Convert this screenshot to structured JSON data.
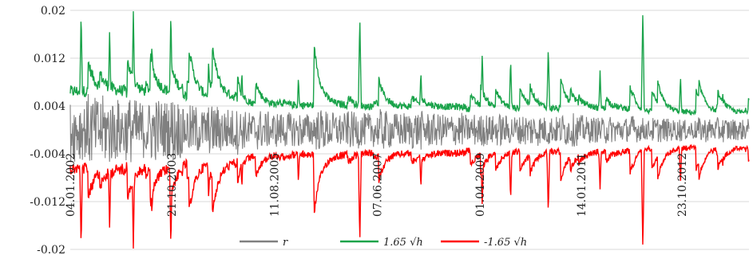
{
  "chart_data": {
    "type": "line",
    "title": "",
    "xlabel": "",
    "ylabel": "",
    "ylim": [
      -0.02,
      0.02
    ],
    "yticks": [
      "0.02",
      "0.012",
      "0.004",
      "-0.004",
      "-0.012",
      "-0.02"
    ],
    "ytick_values": [
      0.02,
      0.012,
      0.004,
      -0.004,
      -0.012,
      -0.02
    ],
    "xtick_labels": [
      "04.01.2002",
      "21.10.2003",
      "11.08.2005",
      "07.06.2007",
      "01.04.2009",
      "14.01.2011",
      "23.10.2012"
    ],
    "x_range": [
      "04.01.2002",
      "31.12.2013"
    ],
    "grid": "horizontal",
    "legend_position": "bottom",
    "colors": {
      "r": "#808080",
      "upper": "#1aa34a",
      "lower": "#ff0000"
    },
    "series": [
      {
        "name": "r",
        "note": "daily returns, high-frequency noise",
        "envelope_by_year": [
          {
            "year": 2002,
            "amplitude": 0.0045
          },
          {
            "year": 2003,
            "amplitude": 0.004
          },
          {
            "year": 2004,
            "amplitude": 0.003
          },
          {
            "year": 2005,
            "amplitude": 0.0025
          },
          {
            "year": 2006,
            "amplitude": 0.0025
          },
          {
            "year": 2007,
            "amplitude": 0.0025
          },
          {
            "year": 2008,
            "amplitude": 0.0025
          },
          {
            "year": 2009,
            "amplitude": 0.002
          },
          {
            "year": 2010,
            "amplitude": 0.002
          },
          {
            "year": 2011,
            "amplitude": 0.0018
          },
          {
            "year": 2012,
            "amplitude": 0.0015
          },
          {
            "year": 2013,
            "amplitude": 0.0015
          }
        ]
      },
      {
        "name": "1.65 √h",
        "baseline_by_year": [
          {
            "year": 2002,
            "value": 0.0055
          },
          {
            "year": 2003,
            "value": 0.0052
          },
          {
            "year": 2004,
            "value": 0.0045
          },
          {
            "year": 2005,
            "value": 0.0035
          },
          {
            "year": 2006,
            "value": 0.0035
          },
          {
            "year": 2007,
            "value": 0.0033
          },
          {
            "year": 2008,
            "value": 0.0033
          },
          {
            "year": 2009,
            "value": 0.003
          },
          {
            "year": 2010,
            "value": 0.003
          },
          {
            "year": 2011,
            "value": 0.003
          },
          {
            "year": 2012,
            "value": 0.0025
          },
          {
            "year": 2013,
            "value": 0.0024
          }
        ],
        "spikes": [
          {
            "date": "2002-03",
            "value": 0.02
          },
          {
            "date": "2002-09",
            "value": 0.017
          },
          {
            "date": "2003-02",
            "value": 0.02
          },
          {
            "date": "2003-06",
            "value": 0.015
          },
          {
            "date": "2003-10",
            "value": 0.02
          },
          {
            "date": "2004-06",
            "value": 0.012
          },
          {
            "date": "2005-01",
            "value": 0.01
          },
          {
            "date": "2006-01",
            "value": 0.009
          },
          {
            "date": "2007-02",
            "value": 0.019
          },
          {
            "date": "2008-03",
            "value": 0.01
          },
          {
            "date": "2009-04",
            "value": 0.013
          },
          {
            "date": "2009-10",
            "value": 0.012
          },
          {
            "date": "2010-06",
            "value": 0.014
          },
          {
            "date": "2011-05",
            "value": 0.01
          },
          {
            "date": "2012-02",
            "value": 0.02
          },
          {
            "date": "2012-10",
            "value": 0.009
          },
          {
            "date": "2013-07",
            "value": 0.006
          }
        ]
      },
      {
        "name": "-1.65 √h",
        "baseline_by_year": [
          {
            "year": 2002,
            "value": -0.0055
          },
          {
            "year": 2003,
            "value": -0.0052
          },
          {
            "year": 2004,
            "value": -0.0045
          },
          {
            "year": 2005,
            "value": -0.0035
          },
          {
            "year": 2006,
            "value": -0.0035
          },
          {
            "year": 2007,
            "value": -0.0033
          },
          {
            "year": 2008,
            "value": -0.0033
          },
          {
            "year": 2009,
            "value": -0.003
          },
          {
            "year": 2010,
            "value": -0.003
          },
          {
            "year": 2011,
            "value": -0.003
          },
          {
            "year": 2012,
            "value": -0.0025
          },
          {
            "year": 2013,
            "value": -0.0024
          }
        ],
        "spikes": [
          {
            "date": "2002-03",
            "value": -0.02
          },
          {
            "date": "2002-09",
            "value": -0.017
          },
          {
            "date": "2003-02",
            "value": -0.02
          },
          {
            "date": "2003-06",
            "value": -0.015
          },
          {
            "date": "2003-10",
            "value": -0.02
          },
          {
            "date": "2004-06",
            "value": -0.012
          },
          {
            "date": "2005-01",
            "value": -0.01
          },
          {
            "date": "2006-01",
            "value": -0.009
          },
          {
            "date": "2007-02",
            "value": -0.019
          },
          {
            "date": "2008-03",
            "value": -0.01
          },
          {
            "date": "2009-04",
            "value": -0.013
          },
          {
            "date": "2009-10",
            "value": -0.012
          },
          {
            "date": "2010-06",
            "value": -0.014
          },
          {
            "date": "2011-05",
            "value": -0.01
          },
          {
            "date": "2012-02",
            "value": -0.02
          },
          {
            "date": "2012-10",
            "value": -0.009
          },
          {
            "date": "2013-07",
            "value": -0.006
          }
        ]
      }
    ],
    "legend": {
      "items": [
        {
          "label": "r",
          "color": "#808080"
        },
        {
          "label": "1.65 √h",
          "color": "#1aa34a"
        },
        {
          "label": "-1.65 √h",
          "color": "#ff0000"
        }
      ]
    }
  }
}
